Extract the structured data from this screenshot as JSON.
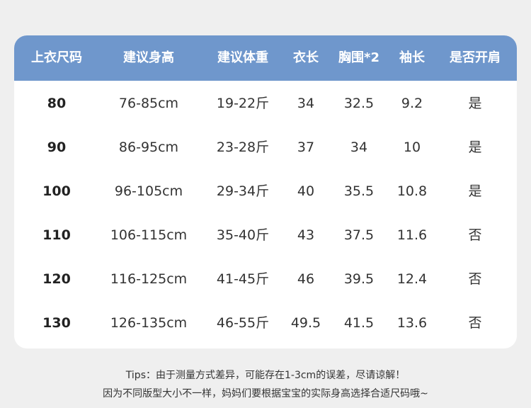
{
  "table": {
    "headers": [
      "上衣尺码",
      "建议身高",
      "建议体重",
      "衣长",
      "胸围*2",
      "袖长",
      "是否开肩"
    ],
    "rows": [
      [
        "80",
        "76-85cm",
        "19-22斤",
        "34",
        "32.5",
        "9.2",
        "是"
      ],
      [
        "90",
        "86-95cm",
        "23-28斤",
        "37",
        "34",
        "10",
        "是"
      ],
      [
        "100",
        "96-105cm",
        "29-34斤",
        "40",
        "35.5",
        "10.8",
        "是"
      ],
      [
        "110",
        "106-115cm",
        "35-40斤",
        "43",
        "37.5",
        "11.6",
        "否"
      ],
      [
        "120",
        "116-125cm",
        "41-45斤",
        "46",
        "39.5",
        "12.4",
        "否"
      ],
      [
        "130",
        "126-135cm",
        "46-55斤",
        "49.5",
        "41.5",
        "13.6",
        "否"
      ]
    ]
  },
  "tips": [
    "Tips：由于测量方式差异，可能存在1-3cm的误差，尽请谅解！",
    "因为不同版型大小不一样，妈妈们要根据宝宝的实际身高选择合适尺码哦~"
  ]
}
